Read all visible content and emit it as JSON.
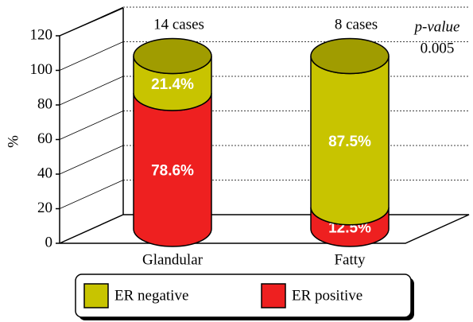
{
  "chart_data": {
    "type": "stacked-cylinder",
    "ylabel": "%",
    "categories": [
      "Glandular",
      "Fatty"
    ],
    "series": [
      {
        "name": "ER negative",
        "color": "#c8c400",
        "values": [
          21.4,
          87.5
        ],
        "value_labels": [
          "21.4%",
          "87.5%"
        ]
      },
      {
        "name": "ER positive",
        "color": "#ee2020",
        "values": [
          78.6,
          12.5
        ],
        "value_labels": [
          "78.6%",
          "12.5%"
        ]
      }
    ],
    "annotations": [
      "14 cases",
      "8 cases",
      "p-value",
      "0.005"
    ],
    "ylim": [
      0,
      120
    ],
    "yticks": [
      0,
      20,
      40,
      60,
      80,
      100,
      120
    ],
    "grid": true
  }
}
